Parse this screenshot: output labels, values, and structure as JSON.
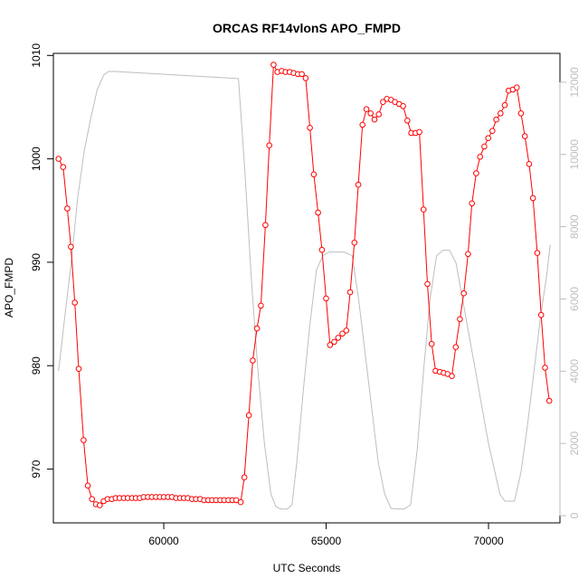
{
  "chart_data": {
    "type": "line",
    "title": "ORCAS RF14vlonS APO_FMPD",
    "xlabel": "UTC Seconds",
    "ylabel": "APO_FMPD",
    "xlim": [
      56600,
      72200
    ],
    "ylim": [
      964.8,
      1010.2
    ],
    "y2lim": [
      -200,
      12800
    ],
    "x_ticks": [
      60000,
      65000,
      70000
    ],
    "y_ticks": [
      970,
      980,
      990,
      1000,
      1010
    ],
    "y2_ticks": [
      0,
      2000,
      4000,
      6000,
      8000,
      10000,
      12000
    ],
    "grid": false,
    "legend": "none",
    "colors": {
      "primary": "#ff0000",
      "secondary": "#bebebe",
      "axis": "#000000",
      "axis2": "#bebebe"
    },
    "series": [
      {
        "axis": "left",
        "style": "line+circles",
        "x": [
          56760,
          56900,
          57030,
          57140,
          57260,
          57380,
          57530,
          57660,
          57790,
          57910,
          58030,
          58150,
          58270,
          58400,
          58520,
          58640,
          58770,
          58890,
          59020,
          59140,
          59260,
          59380,
          59510,
          59630,
          59760,
          59880,
          60000,
          60130,
          60250,
          60380,
          60500,
          60620,
          60740,
          60870,
          60990,
          61120,
          61240,
          61370,
          61490,
          61610,
          61740,
          61860,
          61990,
          62110,
          62230,
          62370,
          62480,
          62620,
          62740,
          62870,
          62990,
          63130,
          63250,
          63380,
          63500,
          63630,
          63750,
          63880,
          64000,
          64130,
          64250,
          64370,
          64500,
          64620,
          64750,
          64870,
          65000,
          65120,
          65250,
          65370,
          65500,
          65620,
          65740,
          65870,
          65990,
          66120,
          66240,
          66370,
          66490,
          66620,
          66750,
          66870,
          67000,
          67120,
          67250,
          67370,
          67500,
          67620,
          67750,
          67870,
          68000,
          68120,
          68250,
          68370,
          68500,
          68620,
          68740,
          68870,
          68990,
          69120,
          69240,
          69370,
          69490,
          69620,
          69740,
          69870,
          69990,
          70120,
          70240,
          70370,
          70500,
          70620,
          70750,
          70870,
          71000,
          71120,
          71250,
          71370,
          71500,
          71620,
          71740,
          71870
        ],
        "y": [
          1000,
          999.2,
          995.2,
          991.5,
          986.1,
          979.7,
          972.8,
          968.4,
          967.1,
          966.6,
          966.5,
          966.9,
          967.1,
          967.1,
          967.2,
          967.2,
          967.2,
          967.2,
          967.2,
          967.2,
          967.2,
          967.3,
          967.3,
          967.3,
          967.3,
          967.3,
          967.3,
          967.3,
          967.3,
          967.2,
          967.2,
          967.2,
          967.2,
          967.1,
          967.1,
          967.1,
          967,
          967,
          967,
          967,
          967,
          967,
          967,
          967,
          967,
          966.8,
          969.2,
          975.2,
          980.5,
          983.6,
          985.8,
          993.6,
          1001.3,
          1009.1,
          1008.4,
          1008.5,
          1008.4,
          1008.4,
          1008.3,
          1008.2,
          1008.2,
          1007.8,
          1003,
          998.5,
          994.8,
          991.2,
          986.5,
          982,
          982.3,
          982.7,
          983.1,
          983.4,
          987.1,
          991.9,
          997.5,
          1003.3,
          1004.8,
          1004.4,
          1003.8,
          1004.3,
          1005.5,
          1005.8,
          1005.7,
          1005.5,
          1005.3,
          1005.1,
          1003.7,
          1002.5,
          1002.5,
          1002.6,
          995.1,
          987.9,
          982.1,
          979.5,
          979.4,
          979.3,
          979.2,
          979,
          981.8,
          984.5,
          987,
          990.8,
          995.7,
          998.6,
          1000.2,
          1001.2,
          1002,
          1002.7,
          1003.8,
          1004.4,
          1005.2,
          1006.6,
          1006.7,
          1006.9,
          1004.4,
          1002.2,
          999.5,
          996.2,
          990.9,
          984.9,
          979.8,
          976.6
        ]
      },
      {
        "axis": "right",
        "style": "line",
        "x": [
          56760,
          56950,
          57150,
          57350,
          57550,
          57750,
          57950,
          58150,
          58300,
          58500,
          62300,
          62500,
          62700,
          62900,
          63100,
          63300,
          63450,
          63600,
          63800,
          63950,
          64100,
          64300,
          64500,
          64700,
          64900,
          65100,
          65300,
          65550,
          65800,
          66000,
          66200,
          66400,
          66600,
          66800,
          67000,
          67200,
          67400,
          67600,
          67800,
          68000,
          68200,
          68400,
          68600,
          68800,
          69000,
          69200,
          69400,
          69600,
          69800,
          70000,
          70200,
          70350,
          70500,
          70650,
          70800,
          71000,
          71200,
          71400,
          71600,
          71800,
          71900
        ],
        "y": [
          4000,
          5500,
          7000,
          8800,
          10100,
          11000,
          11800,
          12200,
          12300,
          12300,
          12100,
          9500,
          6500,
          4000,
          2000,
          600,
          250,
          180,
          180,
          300,
          1500,
          3500,
          5300,
          6800,
          7200,
          7300,
          7300,
          7300,
          7200,
          6000,
          4500,
          3000,
          1500,
          600,
          200,
          180,
          180,
          300,
          1800,
          4000,
          6000,
          7200,
          7350,
          7350,
          7000,
          6000,
          5000,
          4000,
          3000,
          2000,
          1200,
          600,
          400,
          400,
          400,
          1200,
          2500,
          4000,
          5500,
          6700,
          7500
        ]
      }
    ]
  }
}
